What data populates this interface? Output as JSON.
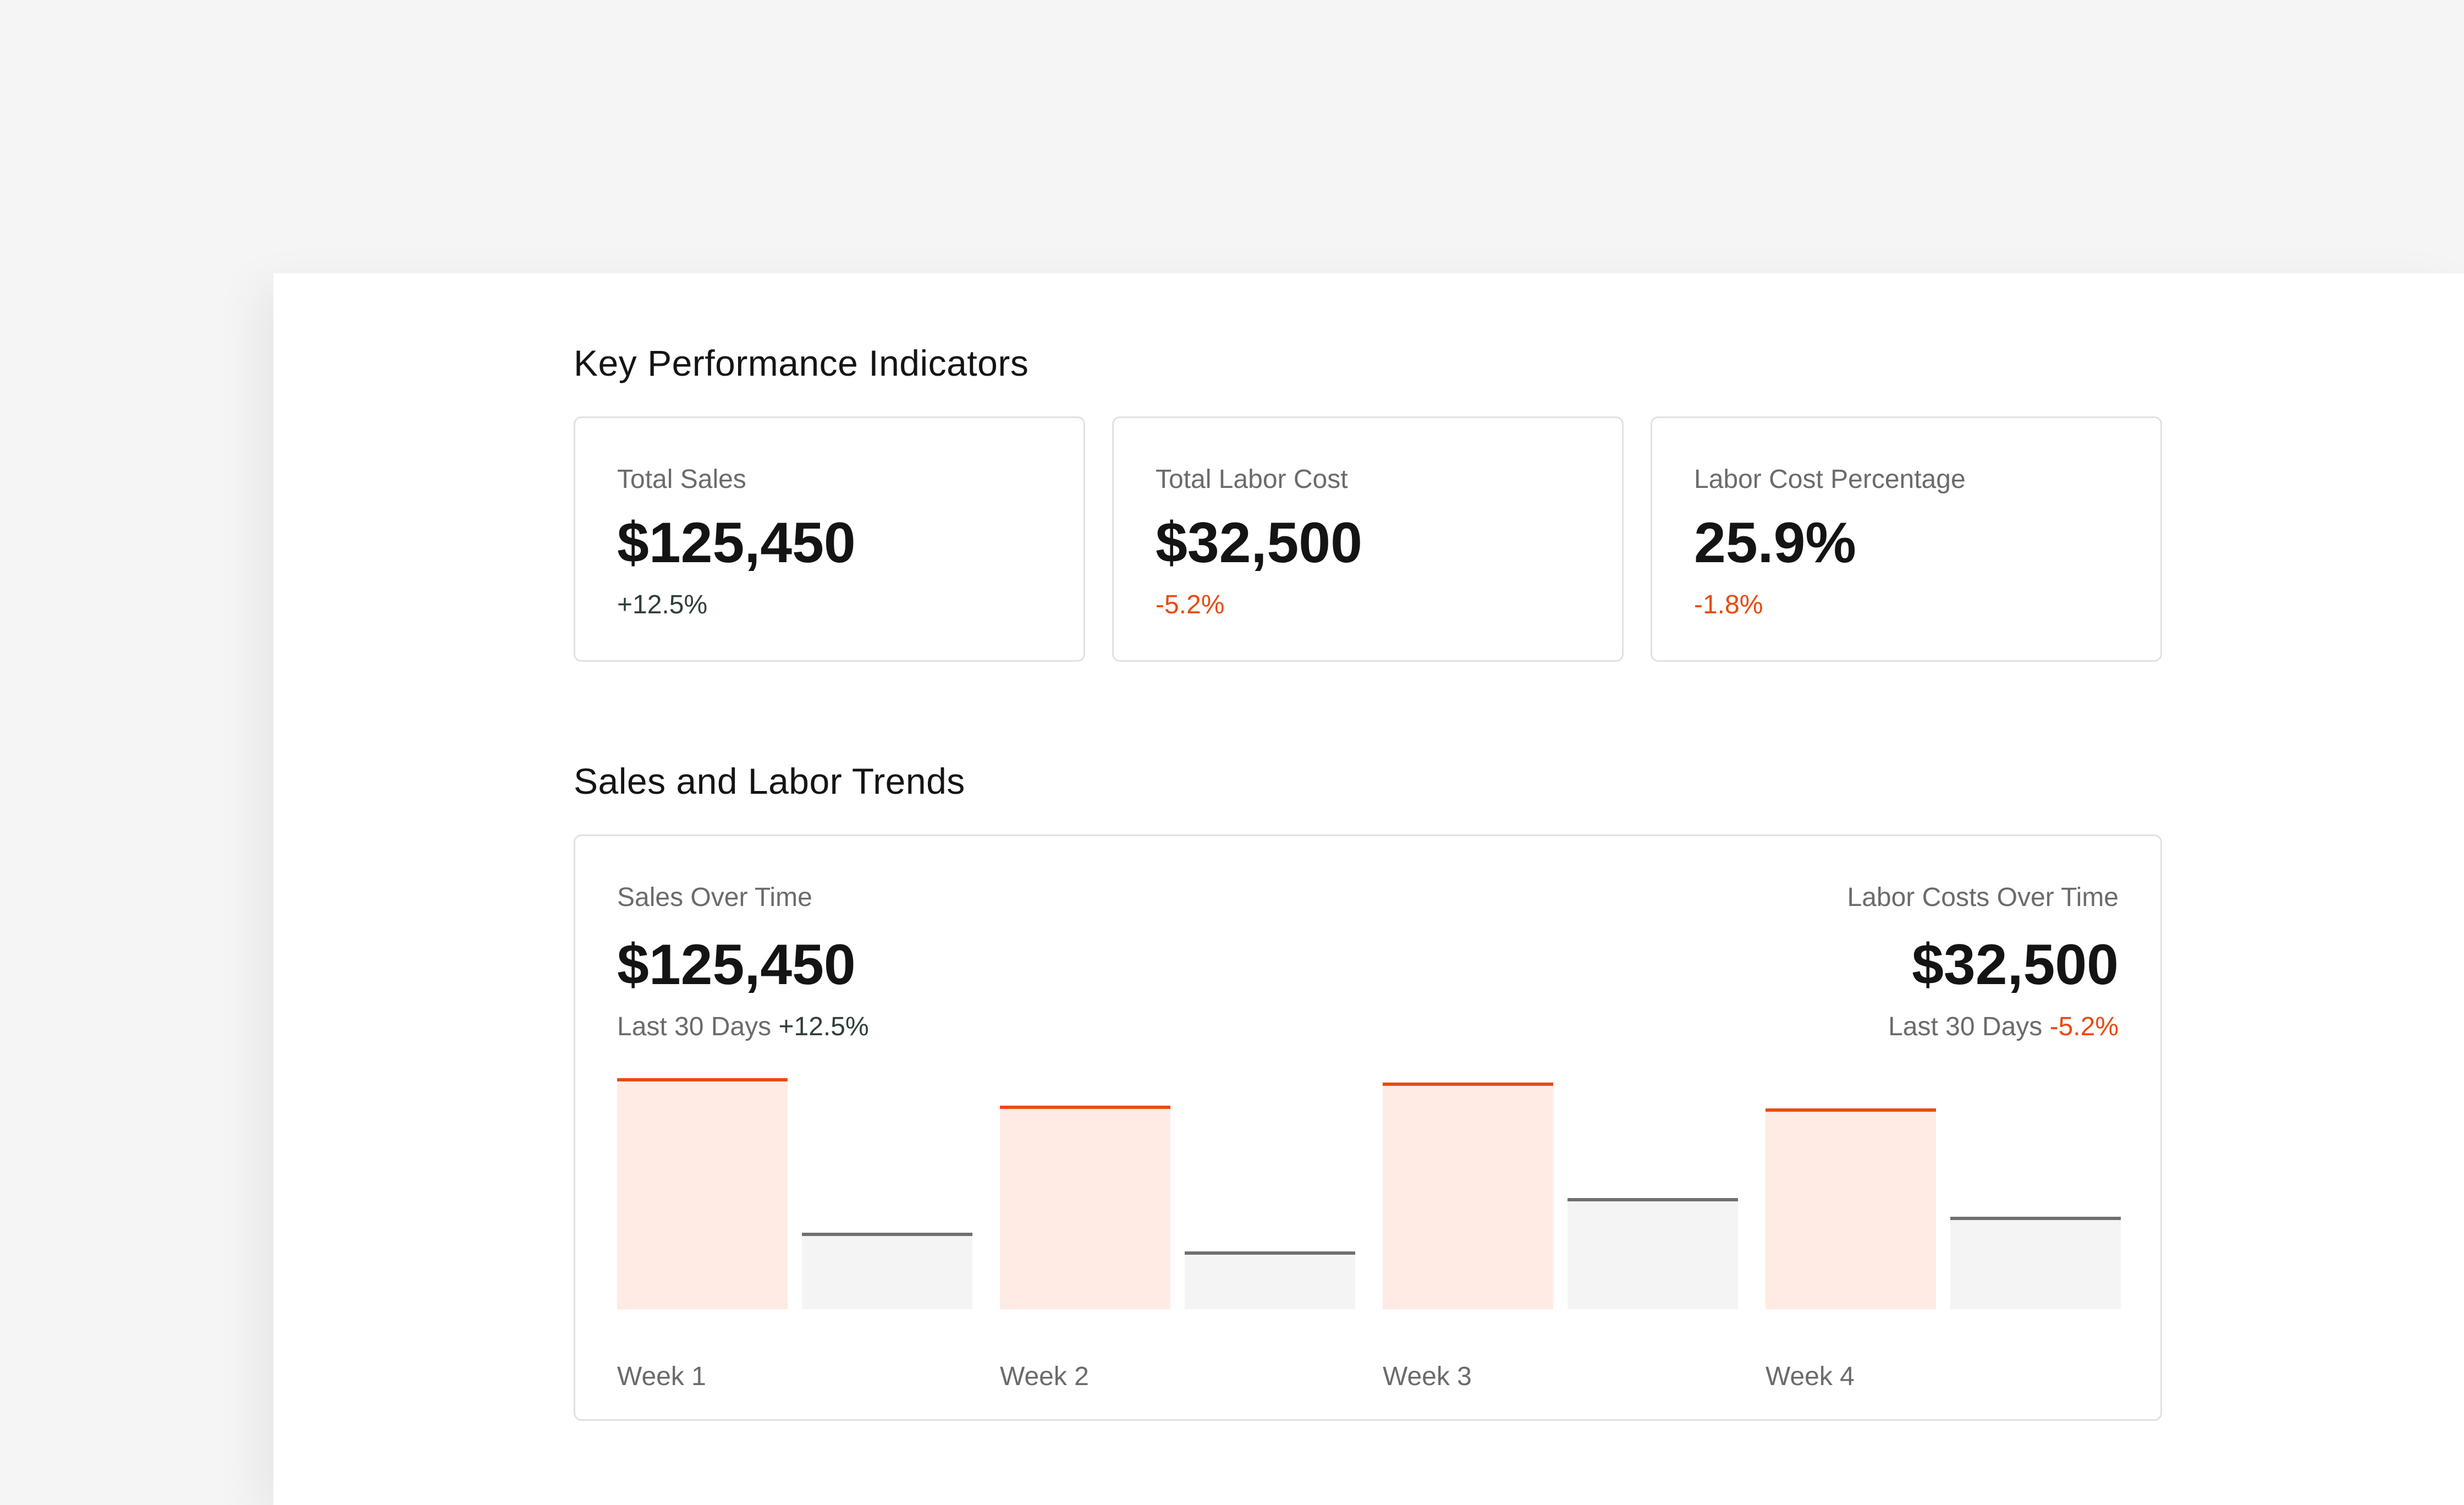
{
  "kpi_section": {
    "title": "Key Performance Indicators",
    "cards": [
      {
        "label": "Total Sales",
        "value": "$125,450",
        "change": "+12.5%",
        "trend": "up"
      },
      {
        "label": "Total Labor Cost",
        "value": "$32,500",
        "change": "-5.2%",
        "trend": "down"
      },
      {
        "label": "Labor Cost Percentage",
        "value": "25.9%",
        "change": "-1.8%",
        "trend": "down"
      }
    ]
  },
  "trends_section": {
    "title": "Sales and Labor Trends",
    "sales": {
      "label": "Sales Over Time",
      "value": "$125,450",
      "period": "Last 30 Days",
      "change": "+12.5%"
    },
    "labor": {
      "label": "Labor Costs Over Time",
      "value": "$32,500",
      "period": "Last 30 Days",
      "change": "-5.2%"
    }
  },
  "chart_data": {
    "type": "bar",
    "categories": [
      "Week 1",
      "Week 2",
      "Week 3",
      "Week 4"
    ],
    "series": [
      {
        "values": [
          100,
          88,
          98,
          87
        ]
      },
      {
        "values": [
          33,
          25,
          48,
          40
        ]
      }
    ],
    "ylim": [
      0,
      100
    ],
    "colors": {
      "sales": "#ea4a10",
      "sales_fill": "#ffebe4",
      "labor": "#707070",
      "labor_fill": "#f4f4f4"
    }
  }
}
